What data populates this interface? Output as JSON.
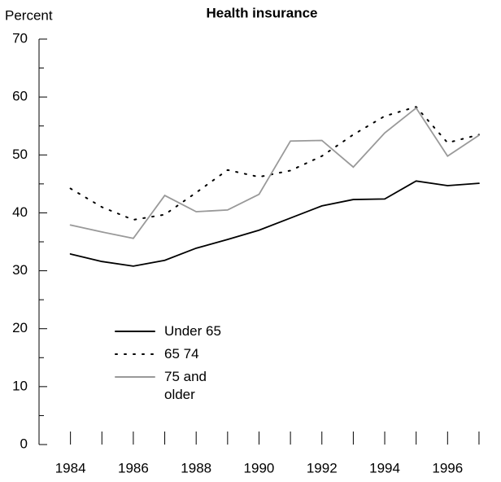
{
  "chart_data": {
    "type": "line",
    "title": "Health insurance",
    "y_label": "Percent",
    "x": [
      1984,
      1985,
      1986,
      1987,
      1988,
      1989,
      1990,
      1991,
      1992,
      1993,
      1994,
      1995,
      1996,
      1997
    ],
    "series": [
      {
        "name": "Under 65",
        "color": "#000000",
        "style": "solid",
        "values": [
          32.9,
          31.6,
          30.8,
          31.8,
          33.9,
          35.4,
          37.0,
          39.1,
          41.2,
          42.3,
          42.4,
          45.5,
          44.7,
          45.1
        ]
      },
      {
        "name": "65 74",
        "color": "#000000",
        "style": "dotted",
        "values": [
          44.2,
          41.0,
          38.8,
          39.7,
          43.5,
          47.4,
          46.2,
          47.3,
          49.8,
          53.5,
          56.7,
          58.3,
          52.1,
          53.5
        ]
      },
      {
        "name": "75 and older",
        "color": "#999999",
        "style": "solid",
        "values": [
          37.9,
          36.7,
          35.6,
          43.0,
          40.2,
          40.5,
          43.2,
          52.4,
          52.5,
          47.9,
          53.8,
          58.1,
          49.8,
          53.4
        ]
      }
    ],
    "xlim": [
      1983,
      1997.7
    ],
    "xticks": [
      1984,
      1986,
      1988,
      1990,
      1992,
      1994,
      1996
    ],
    "ylim": [
      0,
      70
    ],
    "yticks": [
      0,
      10,
      20,
      30,
      40,
      50,
      60,
      70
    ]
  }
}
